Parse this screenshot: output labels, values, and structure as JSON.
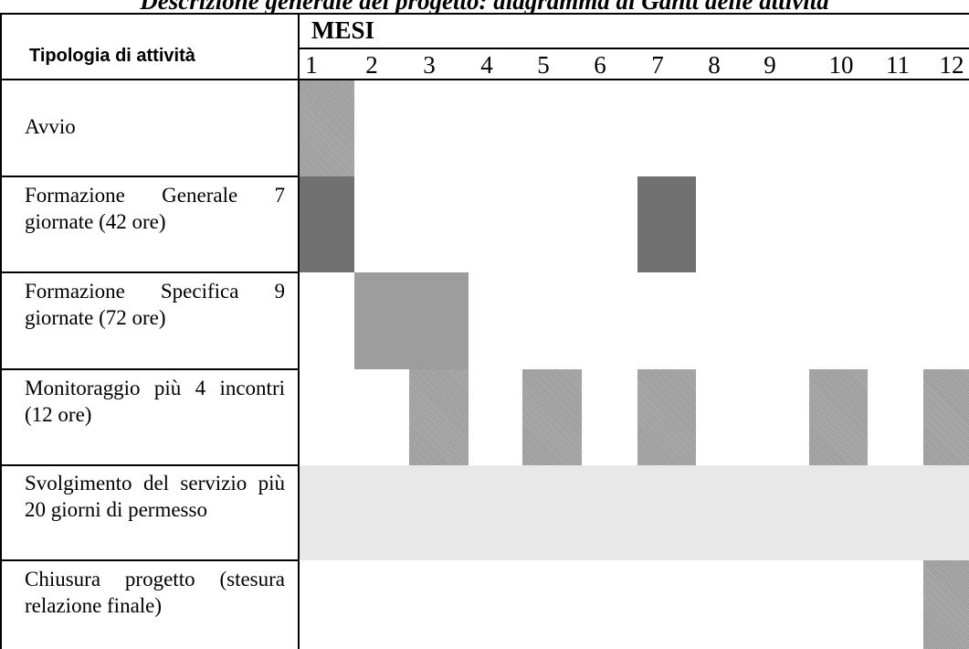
{
  "document": {
    "title": "Descrizione generale del progetto: diagramma di Gantt delle attività"
  },
  "gantt": {
    "header": {
      "activity_column": "Tipologia di attività",
      "months_label": "MESI",
      "months": [
        "1",
        "2",
        "3",
        "4",
        "5",
        "6",
        "7",
        "8",
        "9",
        "10",
        "11",
        "12"
      ]
    },
    "activities": [
      {
        "label": "Avvio",
        "style": "hatch",
        "months": [
          1
        ]
      },
      {
        "label": "Formazione Generale 7 giornate (42 ore)",
        "style": "dark",
        "months": [
          1,
          7
        ]
      },
      {
        "label": "Formazione Specifica 9 giornate (72 ore)",
        "style": "mid",
        "months": [
          2,
          3
        ]
      },
      {
        "label": "Monitoraggio più 4 incontri (12 ore)",
        "style": "hatch",
        "months": [
          3,
          5,
          7,
          10,
          12
        ]
      },
      {
        "label": "Svolgimento del servizio più 20 giorni di permesso",
        "style": "pale",
        "months": [
          1,
          2,
          3,
          4,
          5,
          6,
          7,
          8,
          9,
          10,
          11,
          12
        ]
      },
      {
        "label": "Chiusura progetto (stesura relazione finale)",
        "style": "hatch",
        "months": [
          12
        ]
      }
    ],
    "colors": {
      "hatch": "#a8a8a8",
      "dark": "#717171",
      "mid": "#9d9d9d",
      "pale": "#e8e8e8",
      "grid": "#000000"
    }
  }
}
